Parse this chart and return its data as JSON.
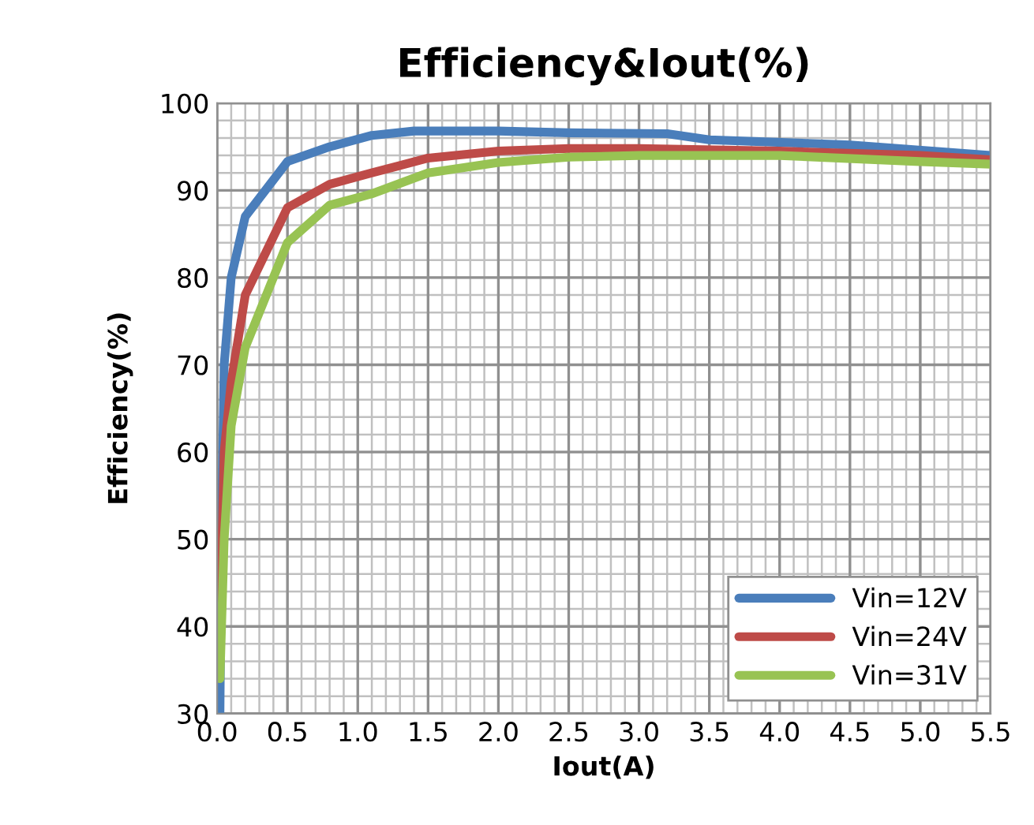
{
  "chart_data": {
    "type": "line",
    "title": "Efficiency&Iout(%)",
    "xlabel": "Iout(A)",
    "ylabel": "Efficiency(%)",
    "xlim": [
      0,
      5.5
    ],
    "ylim": [
      30,
      100
    ],
    "xticks": [
      {
        "value": 0,
        "label": "0.0"
      },
      {
        "value": 0.5,
        "label": "0.5"
      },
      {
        "value": 1,
        "label": "1.0"
      },
      {
        "value": 1.5,
        "label": "1.5"
      },
      {
        "value": 2,
        "label": "2.0"
      },
      {
        "value": 2.5,
        "label": "2.5"
      },
      {
        "value": 3,
        "label": "3.0"
      },
      {
        "value": 3.5,
        "label": "3.5"
      },
      {
        "value": 4,
        "label": "4.0"
      },
      {
        "value": 4.5,
        "label": "4.5"
      },
      {
        "value": 5,
        "label": "5.0"
      },
      {
        "value": 5.5,
        "label": "5.5"
      }
    ],
    "yticks": [
      30,
      40,
      50,
      60,
      70,
      80,
      90,
      100
    ],
    "grid": true,
    "legend": "bottom right",
    "marker": "none",
    "line_style": "solid",
    "series": [
      {
        "name": "Vin=12V",
        "color": "#4a7ebb",
        "x": [
          0.02,
          0.03,
          0.05,
          0.1,
          0.2,
          0.5,
          0.8,
          1.1,
          1.4,
          2,
          2.5,
          3.2,
          3.5,
          4.5,
          5.5
        ],
        "values": [
          30,
          50,
          70,
          80,
          87,
          93.3,
          95,
          96.3,
          96.8,
          96.8,
          96.6,
          96.5,
          95.8,
          95.2,
          94
        ]
      },
      {
        "name": "Vin=24V",
        "color": "#be4b48",
        "x": [
          0.02,
          0.05,
          0.1,
          0.2,
          0.5,
          0.8,
          1.1,
          1.5,
          2,
          2.5,
          3,
          4,
          5,
          5.5
        ],
        "values": [
          40,
          60,
          68,
          78,
          88,
          90.7,
          92,
          93.7,
          94.5,
          94.8,
          94.8,
          94.5,
          94,
          93.5
        ]
      },
      {
        "name": "Vin=31V",
        "color": "#98c353",
        "x": [
          0.02,
          0.05,
          0.1,
          0.2,
          0.5,
          0.8,
          1.1,
          1.5,
          2,
          2.5,
          3,
          4,
          5,
          5.5
        ],
        "values": [
          34,
          50,
          63,
          72,
          84,
          88.3,
          89.6,
          92,
          93.2,
          93.8,
          94,
          94,
          93.3,
          93
        ]
      }
    ]
  }
}
